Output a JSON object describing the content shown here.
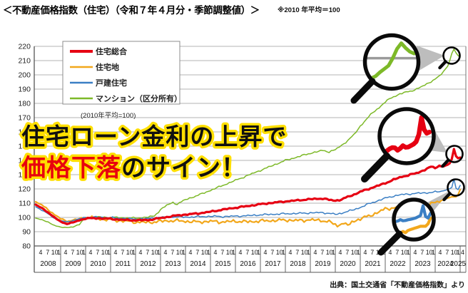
{
  "header": {
    "title": "＜不動産価格指数（住宅）（令和７年４月分・季節調整値）＞",
    "note": "※2010 年平均＝100"
  },
  "annotation": {
    "line1": "住宅ローン金利の上昇で",
    "line2_highlight": "価格下落",
    "line2_rest": "のサイン！",
    "highlight_color": "#e8000d",
    "outline_color": "#ffdf00"
  },
  "legend_note": "(2010年平均=100)",
  "source": "出典：国土交通省「不動産価格指数」より",
  "chart_data": {
    "type": "line",
    "title": "不動産価格指数（住宅）季節調整値",
    "y_axis": {
      "min": 80,
      "max": 220,
      "step": 10
    },
    "x_axis": {
      "start": "2008-04",
      "end": "2025-04",
      "total_months": 204,
      "month_labels": [
        "4",
        "7",
        "10",
        "1"
      ],
      "years": [
        2008,
        2009,
        2010,
        2011,
        2012,
        2013,
        2014,
        2015,
        2016,
        2017,
        2018,
        2019,
        2020,
        2021,
        2022,
        2023,
        2024
      ],
      "final_year": "2025",
      "final_month_label": "4"
    },
    "anchor_format": "[months_since_2008_04, index_value_2010avg_100]",
    "series": [
      {
        "name": "住宅総合",
        "color": "#e60012",
        "width": 3.2,
        "anchors": [
          [
            0,
            109
          ],
          [
            3,
            106.5
          ],
          [
            6,
            103.5
          ],
          [
            9,
            100
          ],
          [
            12,
            97
          ],
          [
            15,
            95.5
          ],
          [
            18,
            96.5
          ],
          [
            21,
            98
          ],
          [
            24,
            99.3
          ],
          [
            30,
            99.5
          ],
          [
            36,
            99
          ],
          [
            42,
            98.3
          ],
          [
            48,
            98
          ],
          [
            54,
            98.2
          ],
          [
            60,
            99.5
          ],
          [
            66,
            101
          ],
          [
            72,
            102
          ],
          [
            78,
            102.8
          ],
          [
            84,
            104
          ],
          [
            90,
            105.5
          ],
          [
            96,
            106.8
          ],
          [
            102,
            108
          ],
          [
            108,
            109.3
          ],
          [
            114,
            110.3
          ],
          [
            120,
            111.2
          ],
          [
            126,
            112
          ],
          [
            132,
            112.8
          ],
          [
            138,
            113.3
          ],
          [
            141,
            112.3
          ],
          [
            144,
            111.8
          ],
          [
            147,
            112.5
          ],
          [
            150,
            114.5
          ],
          [
            153,
            116
          ],
          [
            156,
            118
          ],
          [
            159,
            119.5
          ],
          [
            162,
            121
          ],
          [
            165,
            122.5
          ],
          [
            168,
            124
          ],
          [
            172,
            126.5
          ],
          [
            176,
            128.5
          ],
          [
            180,
            130
          ],
          [
            183,
            131
          ],
          [
            186,
            132.8
          ],
          [
            190,
            135.5
          ],
          [
            192,
            134.8
          ],
          [
            194,
            136.2
          ],
          [
            196,
            135.8
          ],
          [
            198,
            137
          ],
          [
            199,
            138
          ],
          [
            200,
            141
          ],
          [
            201,
            148
          ],
          [
            202,
            143
          ],
          [
            203,
            141.5
          ],
          [
            204,
            142
          ]
        ]
      },
      {
        "name": "住宅地",
        "color": "#f2a71b",
        "width": 2.2,
        "anchors": [
          [
            0,
            111
          ],
          [
            3,
            108.5
          ],
          [
            6,
            105.5
          ],
          [
            9,
            102
          ],
          [
            12,
            99
          ],
          [
            15,
            97.5
          ],
          [
            18,
            98
          ],
          [
            21,
            99
          ],
          [
            24,
            100
          ],
          [
            27,
            99.5
          ],
          [
            30,
            99
          ],
          [
            36,
            98.3
          ],
          [
            42,
            97.5
          ],
          [
            48,
            96.8
          ],
          [
            54,
            96.5
          ],
          [
            60,
            97.3
          ],
          [
            66,
            97.8
          ],
          [
            72,
            97.3
          ],
          [
            78,
            96.8
          ],
          [
            84,
            97.3
          ],
          [
            90,
            96.8
          ],
          [
            96,
            97.4
          ],
          [
            102,
            96.9
          ],
          [
            108,
            97.5
          ],
          [
            114,
            97.8
          ],
          [
            120,
            98.2
          ],
          [
            126,
            97.8
          ],
          [
            132,
            98.3
          ],
          [
            138,
            97.8
          ],
          [
            142,
            96.5
          ],
          [
            145,
            94
          ],
          [
            148,
            96.5
          ],
          [
            150,
            93.8
          ],
          [
            152,
            97
          ],
          [
            156,
            99
          ],
          [
            160,
            101
          ],
          [
            164,
            103.2
          ],
          [
            168,
            106
          ],
          [
            172,
            106.8
          ],
          [
            176,
            107.3
          ],
          [
            178,
            106
          ],
          [
            180,
            107.8
          ],
          [
            183,
            106
          ],
          [
            186,
            107.5
          ],
          [
            189,
            108.8
          ],
          [
            192,
            110.5
          ],
          [
            195,
            112
          ],
          [
            198,
            113.5
          ],
          [
            200,
            114.5
          ],
          [
            202,
            114.5
          ],
          [
            203,
            116
          ],
          [
            204,
            119.5
          ]
        ]
      },
      {
        "name": "戸建住宅",
        "color": "#3b7fc4",
        "width": 1.5,
        "anchors": [
          [
            0,
            107.5
          ],
          [
            3,
            105
          ],
          [
            6,
            102.5
          ],
          [
            9,
            99.5
          ],
          [
            12,
            97.5
          ],
          [
            15,
            97
          ],
          [
            18,
            97.8
          ],
          [
            21,
            99
          ],
          [
            24,
            100
          ],
          [
            30,
            100.2
          ],
          [
            36,
            99.8
          ],
          [
            42,
            99.3
          ],
          [
            48,
            98.8
          ],
          [
            54,
            99.2
          ],
          [
            60,
            100
          ],
          [
            66,
            100.5
          ],
          [
            72,
            100.2
          ],
          [
            78,
            100.5
          ],
          [
            84,
            100.8
          ],
          [
            90,
            100.6
          ],
          [
            96,
            100.9
          ],
          [
            102,
            101.2
          ],
          [
            108,
            101.8
          ],
          [
            114,
            102.2
          ],
          [
            120,
            102.6
          ],
          [
            126,
            102.8
          ],
          [
            132,
            103.2
          ],
          [
            138,
            103.4
          ],
          [
            142,
            102.6
          ],
          [
            145,
            102.2
          ],
          [
            148,
            103.5
          ],
          [
            152,
            105
          ],
          [
            156,
            107
          ],
          [
            160,
            109.5
          ],
          [
            164,
            111.5
          ],
          [
            168,
            113.5
          ],
          [
            172,
            115
          ],
          [
            176,
            116
          ],
          [
            180,
            116.5
          ],
          [
            184,
            117
          ],
          [
            188,
            117.3
          ],
          [
            192,
            117.8
          ],
          [
            195,
            118.3
          ],
          [
            198,
            119.5
          ],
          [
            200,
            121
          ],
          [
            201,
            127
          ],
          [
            202,
            120.5
          ],
          [
            203,
            119.5
          ],
          [
            204,
            122.5
          ]
        ]
      },
      {
        "name": "マンション（区分所有）",
        "color": "#7db928",
        "width": 1.5,
        "anchors": [
          [
            0,
            99.5
          ],
          [
            3,
            98.5
          ],
          [
            6,
            96.5
          ],
          [
            9,
            94.5
          ],
          [
            12,
            93.2
          ],
          [
            15,
            92.8
          ],
          [
            18,
            93.5
          ],
          [
            21,
            95
          ],
          [
            23,
            98.5
          ],
          [
            24,
            99.8
          ],
          [
            30,
            100.3
          ],
          [
            36,
            100
          ],
          [
            42,
            99.8
          ],
          [
            48,
            99.5
          ],
          [
            54,
            100.2
          ],
          [
            57,
            101
          ],
          [
            60,
            105.5
          ],
          [
            63,
            108.5
          ],
          [
            66,
            110.5
          ],
          [
            68,
            109.3
          ],
          [
            72,
            112.5
          ],
          [
            78,
            115.5
          ],
          [
            84,
            119
          ],
          [
            90,
            122.5
          ],
          [
            96,
            126
          ],
          [
            102,
            129.5
          ],
          [
            108,
            133
          ],
          [
            114,
            136.5
          ],
          [
            120,
            140
          ],
          [
            126,
            142.5
          ],
          [
            132,
            145
          ],
          [
            138,
            147
          ],
          [
            141,
            146
          ],
          [
            144,
            147.5
          ],
          [
            147,
            150.5
          ],
          [
            150,
            154
          ],
          [
            153,
            158
          ],
          [
            156,
            164
          ],
          [
            159,
            169
          ],
          [
            162,
            173.5
          ],
          [
            165,
            177
          ],
          [
            168,
            181
          ],
          [
            171,
            184
          ],
          [
            174,
            186
          ],
          [
            177,
            187.5
          ],
          [
            180,
            188.5
          ],
          [
            183,
            190
          ],
          [
            186,
            192
          ],
          [
            189,
            194.5
          ],
          [
            192,
            197
          ],
          [
            194,
            199
          ],
          [
            196,
            202.5
          ],
          [
            198,
            206
          ],
          [
            199,
            210
          ],
          [
            200,
            215
          ],
          [
            201,
            218
          ],
          [
            202,
            215.5
          ],
          [
            203,
            213.5
          ],
          [
            204,
            212.5
          ]
        ]
      }
    ]
  }
}
